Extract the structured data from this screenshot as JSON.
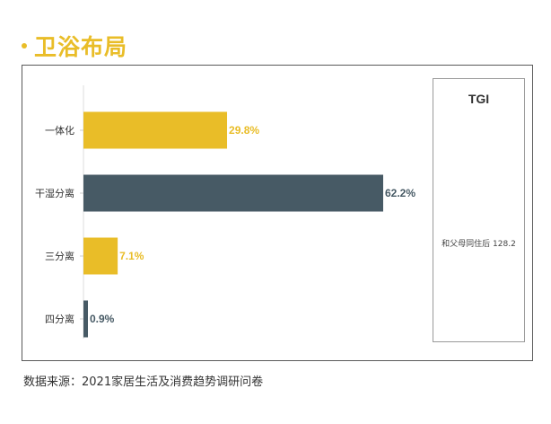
{
  "page": {
    "title": "卫浴布局",
    "source": "数据来源：2021家居生活及消费趋势调研问卷"
  },
  "colors": {
    "accent": "#E9BD28",
    "dark": "#475A65",
    "text": "#333333"
  },
  "chart_data": {
    "type": "bar",
    "orientation": "horizontal",
    "title": "卫浴布局",
    "xlabel": "",
    "ylabel": "",
    "xlim": [
      0,
      62.2
    ],
    "grid": false,
    "categories": [
      "一体化",
      "干湿分离",
      "三分离",
      "四分离"
    ],
    "values": [
      29.8,
      62.2,
      7.1,
      0.9
    ],
    "value_labels": [
      "29.8%",
      "62.2%",
      "7.1%",
      "0.9%"
    ],
    "bar_colors": [
      "#E9BD28",
      "#475A65",
      "#E9BD28",
      "#475A65"
    ]
  },
  "tgi": {
    "header": "TGI",
    "row": "和父母同住后 128.2"
  }
}
